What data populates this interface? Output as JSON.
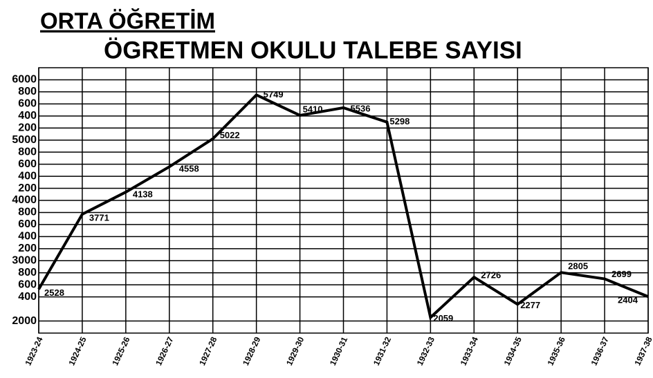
{
  "chart_data": {
    "type": "line",
    "title": "ORTA ÖĞRETİM",
    "subtitle": "ÖGRETMEN OKULU TALEBE SAYISI",
    "categories": [
      "1923-24",
      "1924-25",
      "1925-26",
      "1926-27",
      "1927-28",
      "1928-29",
      "1929-30",
      "1930-31",
      "1931-32",
      "1932-33",
      "1933-34",
      "1934-35",
      "1935-36",
      "1936-37",
      "1937-38"
    ],
    "values": [
      2528,
      3771,
      4138,
      4558,
      5022,
      5749,
      5410,
      5536,
      5298,
      2059,
      2726,
      2277,
      2805,
      2699,
      2404
    ],
    "color": "#000000",
    "ylim": [
      1800,
      6200
    ],
    "yticks": [
      2000,
      {
        "value": 2400,
        "label": "400"
      },
      {
        "value": 2600,
        "label": "600"
      },
      {
        "value": 2800,
        "label": "800"
      },
      3000,
      {
        "value": 3200,
        "label": "200"
      },
      {
        "value": 3400,
        "label": "400"
      },
      {
        "value": 3600,
        "label": "600"
      },
      {
        "value": 3800,
        "label": "800"
      },
      4000,
      {
        "value": 4200,
        "label": "200"
      },
      {
        "value": 4400,
        "label": "400"
      },
      {
        "value": 4600,
        "label": "600"
      },
      {
        "value": 4800,
        "label": "800"
      },
      5000,
      {
        "value": 5200,
        "label": "200"
      },
      {
        "value": 5400,
        "label": "400"
      },
      {
        "value": 5600,
        "label": "600"
      },
      {
        "value": 5800,
        "label": "800"
      },
      6000
    ],
    "grid": true
  }
}
